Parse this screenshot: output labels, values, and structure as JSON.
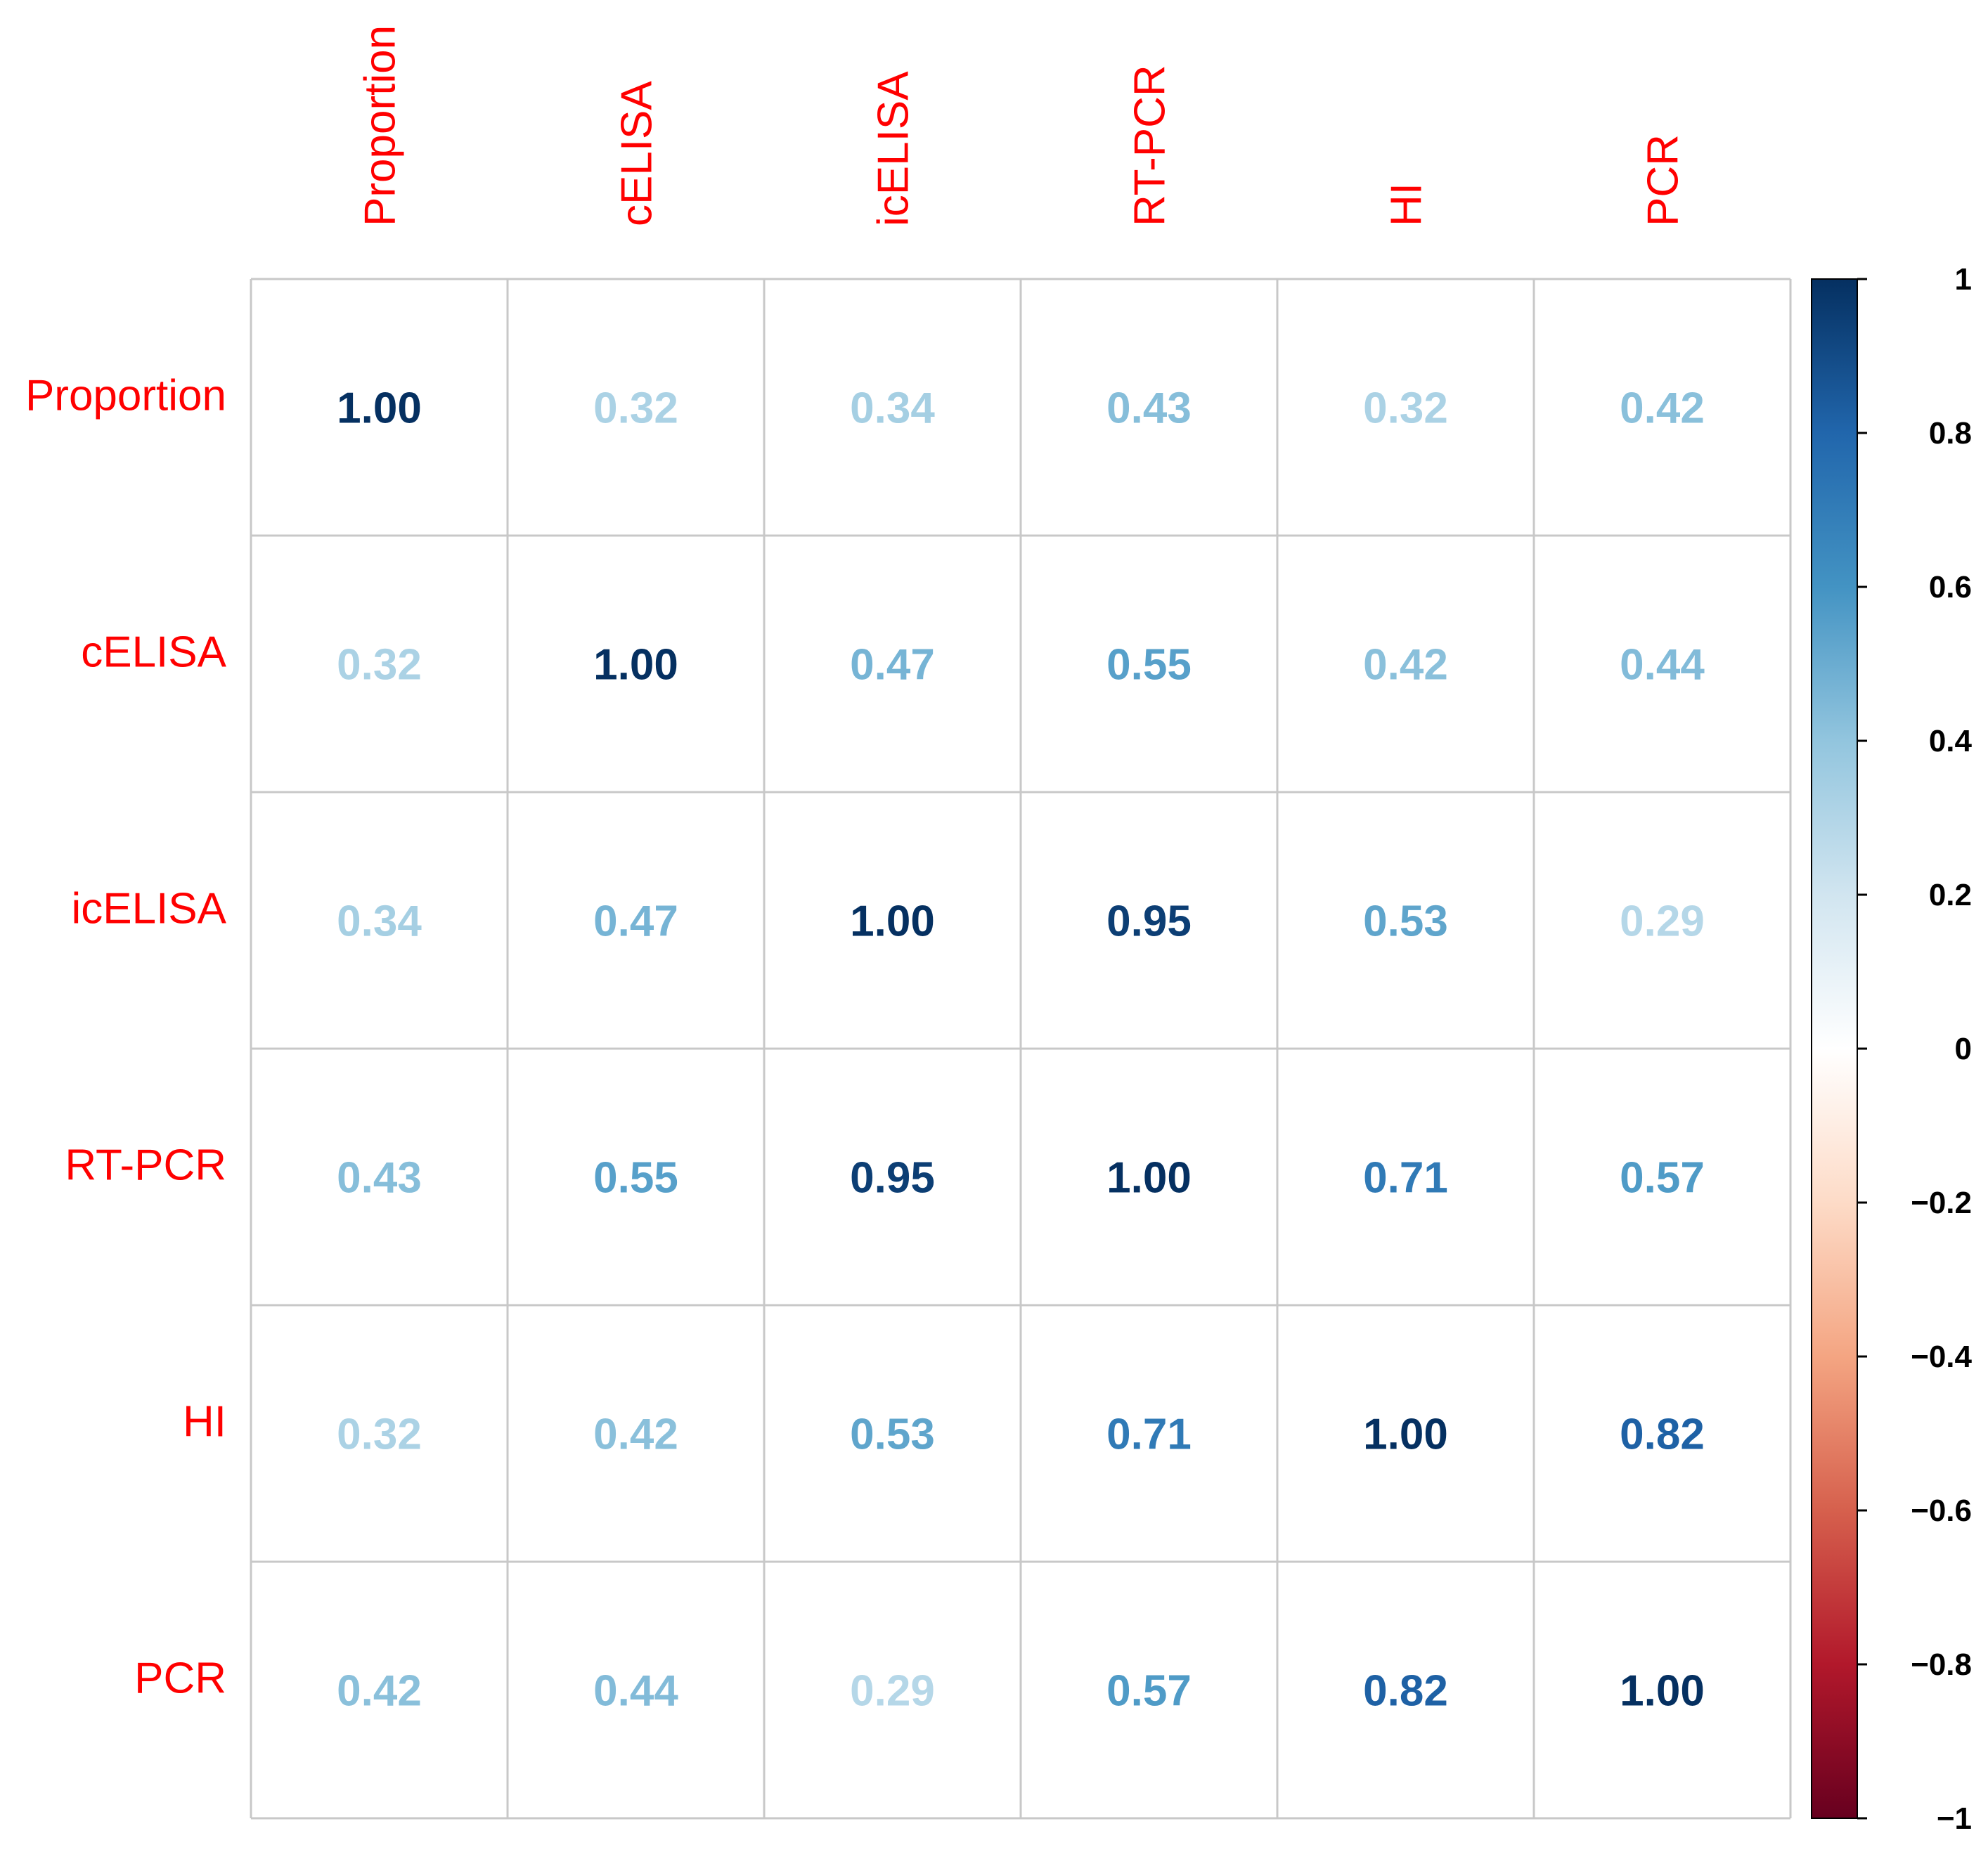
{
  "chart_data": {
    "type": "heatmap",
    "variables": [
      "Proportion",
      "cELISA",
      "icELISA",
      "RT-PCR",
      "HI",
      "PCR"
    ],
    "matrix": [
      [
        1.0,
        0.32,
        0.34,
        0.43,
        0.32,
        0.42
      ],
      [
        0.32,
        1.0,
        0.47,
        0.55,
        0.42,
        0.44
      ],
      [
        0.34,
        0.47,
        1.0,
        0.95,
        0.53,
        0.29
      ],
      [
        0.43,
        0.55,
        0.95,
        1.0,
        0.71,
        0.57
      ],
      [
        0.32,
        0.42,
        0.53,
        0.71,
        1.0,
        0.82
      ],
      [
        0.42,
        0.44,
        0.29,
        0.57,
        0.82,
        1.0
      ]
    ],
    "value_format": "0.00",
    "colorbar": {
      "range": [
        -1,
        1
      ],
      "ticks": [
        1,
        0.8,
        0.6,
        0.4,
        0.2,
        0,
        -0.2,
        -0.4,
        -0.6,
        -0.8,
        -1
      ],
      "tick_labels": [
        "1",
        "0.8",
        "0.6",
        "0.4",
        "0.2",
        "0",
        "−0.2",
        "−0.4",
        "−0.6",
        "−0.8",
        "−1"
      ]
    },
    "colors": {
      "label": "#ff0000",
      "grid": "#c8c8c8",
      "scale": [
        "#67001f",
        "#b2182b",
        "#d6604d",
        "#f4a582",
        "#fddbc7",
        "#ffffff",
        "#d1e5f0",
        "#92c5de",
        "#4393c3",
        "#2166ac",
        "#053061"
      ]
    }
  }
}
